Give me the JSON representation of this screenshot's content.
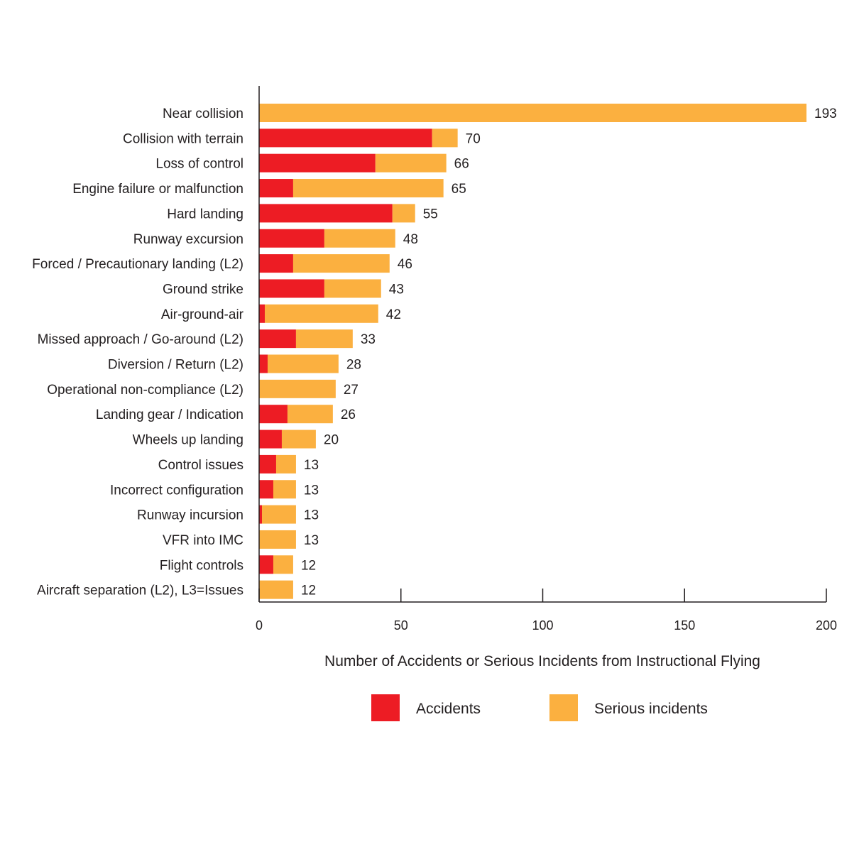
{
  "chart_data": {
    "type": "bar",
    "orientation": "horizontal",
    "stacked": true,
    "title": "",
    "xlabel": "Number of Accidents or Serious Incidents from Instructional Flying",
    "ylabel": "",
    "xlim": [
      0,
      200
    ],
    "xticks": [
      0,
      50,
      100,
      150,
      200
    ],
    "grid": false,
    "legend_position": "bottom",
    "categories": [
      "Near collision",
      "Collision with terrain",
      "Loss of control",
      "Engine failure or malfunction",
      "Hard landing",
      "Runway excursion",
      "Forced / Precautionary landing (L2)",
      "Ground strike",
      "Air-ground-air",
      "Missed approach / Go-around (L2)",
      "Diversion / Return (L2)",
      "Operational non-compliance (L2)",
      "Landing gear / Indication",
      "Wheels up landing",
      "Control issues",
      "Incorrect configuration",
      "Runway incursion",
      "VFR into IMC",
      "Flight controls",
      "Aircraft separation (L2), L3=Issues"
    ],
    "series": [
      {
        "name": "Accidents",
        "color": "#ed1c24",
        "values": [
          0,
          61,
          41,
          12,
          47,
          23,
          12,
          23,
          2,
          13,
          3,
          0,
          10,
          8,
          6,
          5,
          1,
          0,
          5,
          0
        ]
      },
      {
        "name": "Serious incidents",
        "color": "#fbb040",
        "values": [
          193,
          9,
          25,
          53,
          8,
          25,
          34,
          20,
          40,
          20,
          25,
          27,
          16,
          12,
          7,
          8,
          12,
          13,
          7,
          12
        ]
      }
    ],
    "totals": [
      "193",
      "70",
      "66",
      "65",
      "55",
      "48",
      "46",
      "43",
      "42",
      "33",
      "28",
      "27",
      "26",
      "20",
      "13",
      "13",
      "13",
      "13",
      "12",
      "12"
    ]
  }
}
